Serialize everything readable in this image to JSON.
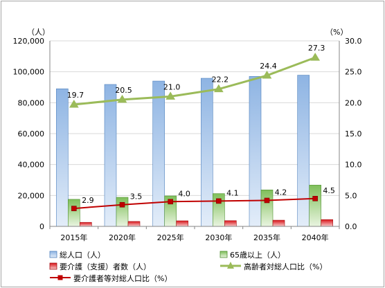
{
  "chart_data": {
    "type": "bar",
    "categories": [
      "2015年",
      "2020年",
      "2025年",
      "2030年",
      "2035年",
      "2040年"
    ],
    "series": [
      {
        "name": "総人口（人）",
        "type": "bar",
        "axis": "left",
        "color": "#8eb4e3",
        "values": [
          89000,
          91800,
          94000,
          95800,
          97000,
          97800
        ]
      },
      {
        "name": "65歳以上（人）",
        "type": "bar",
        "axis": "left",
        "color": "#8cc870",
        "values": [
          17500,
          18800,
          19700,
          21200,
          23600,
          26700
        ]
      },
      {
        "name": "要介護（支援）者数（人）",
        "type": "bar",
        "axis": "left",
        "color": "#e23c3c",
        "values": [
          2600,
          3200,
          3600,
          3700,
          4000,
          4400
        ]
      },
      {
        "name": "高齢者対総人口比（%）",
        "type": "line",
        "axis": "right",
        "color": "#9bbb59",
        "marker": "triangle",
        "values": [
          19.7,
          20.5,
          21.0,
          22.2,
          24.4,
          27.3
        ],
        "labels": [
          "19.7",
          "20.5",
          "21.0",
          "22.2",
          "24.4",
          "27.3"
        ]
      },
      {
        "name": "要介護者等対総人口比（%）",
        "type": "line",
        "axis": "right",
        "color": "#c00000",
        "marker": "square",
        "values": [
          2.9,
          3.5,
          4.0,
          4.1,
          4.2,
          4.5
        ],
        "labels": [
          "2.9",
          "3.5",
          "4.0",
          "4.1",
          "4.2",
          "4.5"
        ]
      }
    ],
    "y_left": {
      "unit": "（人）",
      "range": [
        0,
        120000
      ],
      "ticks": [
        "0",
        "20,000",
        "40,000",
        "60,000",
        "80,000",
        "100,000",
        "120,000"
      ]
    },
    "y_right": {
      "unit": "（%）",
      "range": [
        0,
        30
      ],
      "ticks": [
        "0.0",
        "5.0",
        "10.0",
        "15.0",
        "20.0",
        "25.0",
        "30.0"
      ]
    },
    "grid": true,
    "legend_position": "bottom"
  }
}
